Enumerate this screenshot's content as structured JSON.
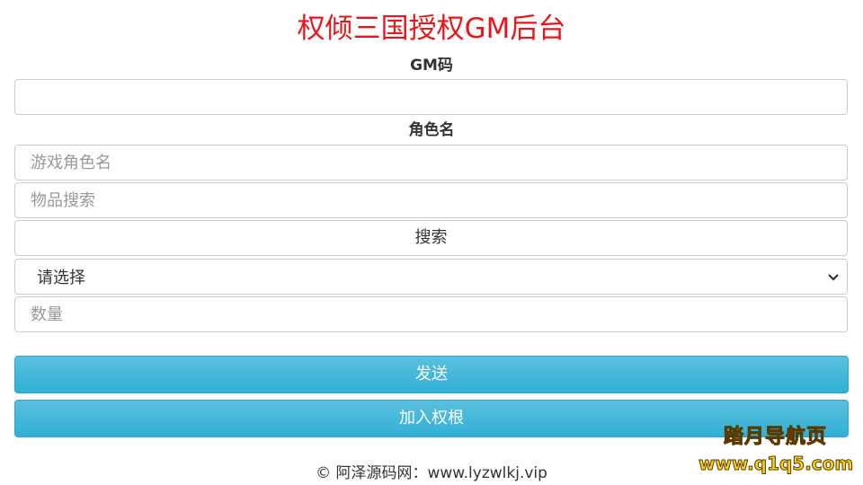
{
  "title": "权倾三国授权GM后台",
  "gm_code": {
    "label": "GM码",
    "value": ""
  },
  "role": {
    "label": "角色名",
    "placeholder": "游戏角色名"
  },
  "item_search": {
    "placeholder": "物品搜索"
  },
  "search_button": "搜索",
  "select": {
    "selected": "请选择"
  },
  "quantity": {
    "placeholder": "数量"
  },
  "send_button": "发送",
  "add_button": "加入权根",
  "footer": "© 阿泽源码网：www.lyzwlkj.vip",
  "watermark": {
    "line1": "踏月导航页",
    "line2": "www.q1q5.com"
  },
  "colors": {
    "title": "#e8161b",
    "button": "#5bc0de"
  }
}
